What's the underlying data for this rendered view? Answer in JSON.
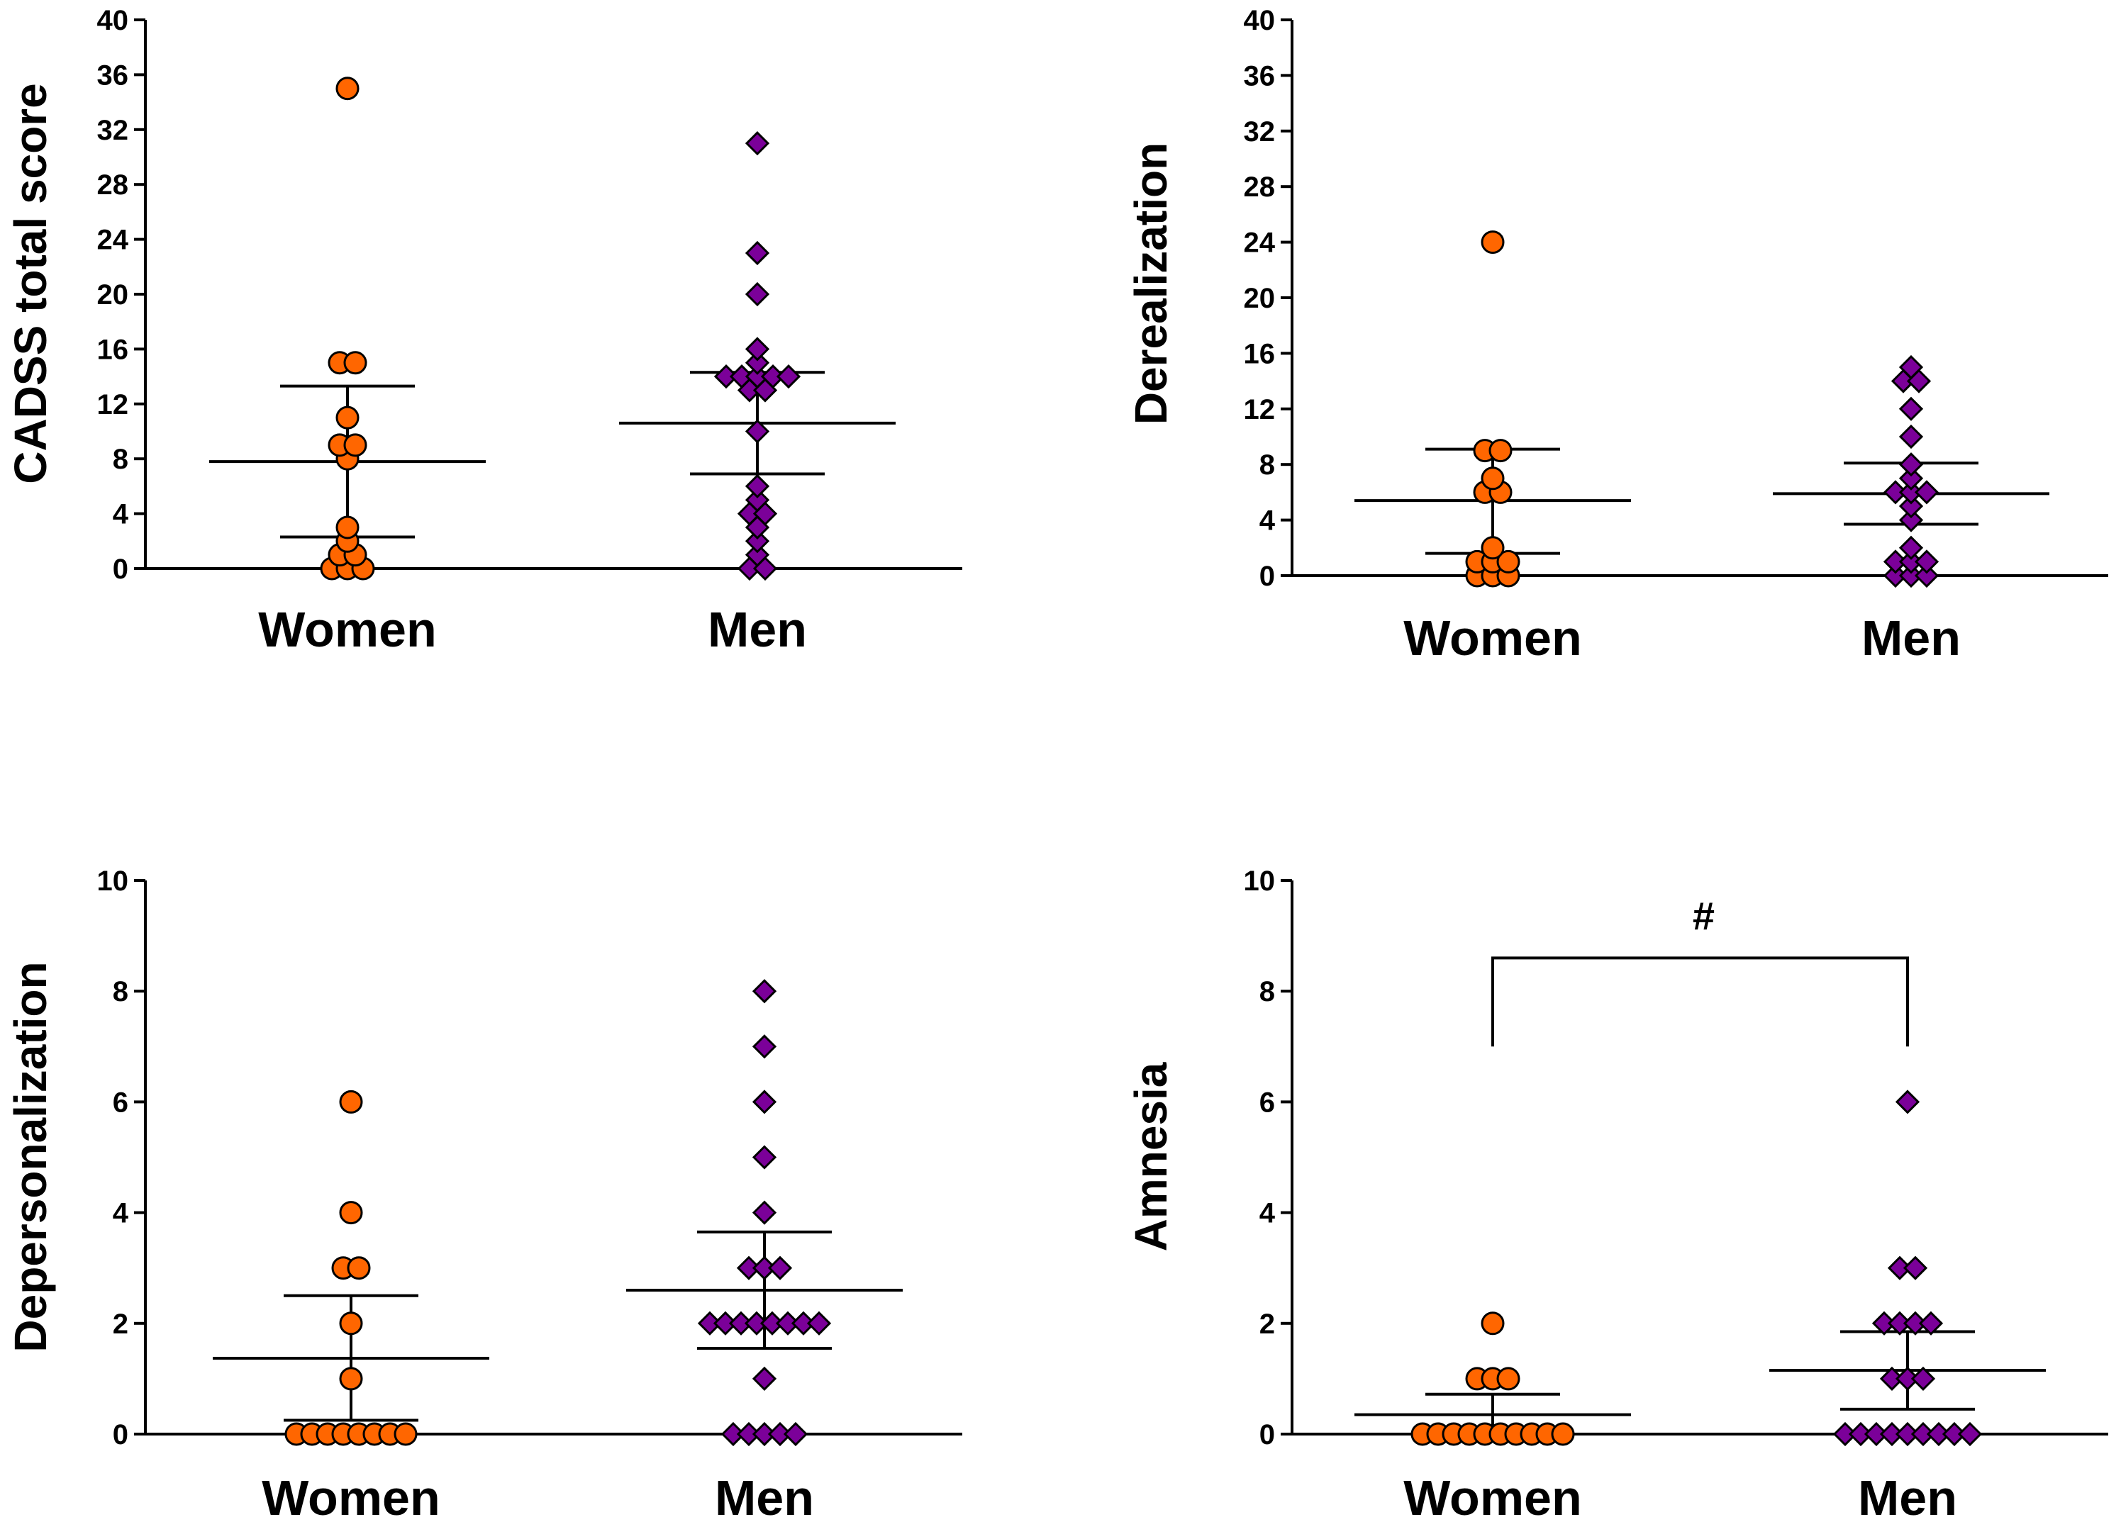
{
  "chart_data": [
    {
      "type": "scatter",
      "panel": "top-left",
      "ylabel": "CADSS total score",
      "ylim": [
        0,
        40
      ],
      "yticks": [
        0,
        4,
        8,
        12,
        16,
        20,
        24,
        28,
        32,
        36,
        40
      ],
      "categories": [
        "Women",
        "Men"
      ],
      "series": [
        {
          "name": "Women",
          "marker": "circle",
          "values": [
            35,
            15,
            15,
            11,
            9,
            9,
            8,
            3,
            2,
            1,
            1,
            0,
            0,
            0
          ],
          "mean": 7.8,
          "sem_low": 2.3,
          "sem_high": 13.3
        },
        {
          "name": "Men",
          "marker": "diamond",
          "values": [
            31,
            23,
            20,
            16,
            15,
            14,
            14,
            14,
            14,
            14,
            13,
            13,
            10,
            6,
            5,
            4,
            4,
            3,
            2,
            1,
            0,
            0
          ],
          "mean": 10.6,
          "sem_low": 6.9,
          "sem_high": 14.3
        }
      ]
    },
    {
      "type": "scatter",
      "panel": "top-right",
      "ylabel": "Derealization",
      "ylim": [
        0,
        40
      ],
      "yticks": [
        0,
        4,
        8,
        12,
        16,
        20,
        24,
        28,
        32,
        36,
        40
      ],
      "categories": [
        "Women",
        "Men"
      ],
      "series": [
        {
          "name": "Women",
          "marker": "circle",
          "values": [
            24,
            9,
            9,
            7,
            6,
            6,
            2,
            1,
            1,
            1,
            0,
            0,
            0
          ],
          "mean": 5.4,
          "sem_low": 1.6,
          "sem_high": 9.1
        },
        {
          "name": "Men",
          "marker": "diamond",
          "values": [
            15,
            14,
            14,
            12,
            10,
            8,
            7,
            6,
            6,
            6,
            5,
            4,
            2,
            1,
            1,
            1,
            0,
            0,
            0
          ],
          "mean": 5.9,
          "sem_low": 3.7,
          "sem_high": 8.1
        }
      ]
    },
    {
      "type": "scatter",
      "panel": "bottom-left",
      "ylabel": "Depersonalization",
      "ylim": [
        0,
        10
      ],
      "yticks": [
        0,
        2,
        4,
        6,
        8,
        10
      ],
      "categories": [
        "Women",
        "Men"
      ],
      "series": [
        {
          "name": "Women",
          "marker": "circle",
          "values": [
            6,
            4,
            3,
            3,
            2,
            1,
            0,
            0,
            0,
            0,
            0,
            0,
            0,
            0
          ],
          "mean": 1.37,
          "sem_low": 0.25,
          "sem_high": 2.5
        },
        {
          "name": "Men",
          "marker": "diamond",
          "values": [
            8,
            7,
            6,
            5,
            4,
            3,
            3,
            3,
            2,
            2,
            2,
            2,
            2,
            2,
            2,
            2,
            1,
            0,
            0,
            0,
            0,
            0
          ],
          "mean": 2.6,
          "sem_low": 1.55,
          "sem_high": 3.65
        }
      ]
    },
    {
      "type": "scatter",
      "panel": "bottom-right",
      "ylabel": "Amnesia",
      "ylim": [
        0,
        10
      ],
      "yticks": [
        0,
        2,
        4,
        6,
        8,
        10
      ],
      "categories": [
        "Women",
        "Men"
      ],
      "significance": "#",
      "bracket_y": 8.6,
      "bracket_drop_to": 7.0,
      "series": [
        {
          "name": "Women",
          "marker": "circle",
          "values": [
            2,
            1,
            1,
            1,
            0,
            0,
            0,
            0,
            0,
            0,
            0,
            0,
            0,
            0
          ],
          "mean": 0.35,
          "sem_low": 0.0,
          "sem_high": 0.72
        },
        {
          "name": "Men",
          "marker": "diamond",
          "values": [
            6,
            3,
            3,
            2,
            2,
            2,
            2,
            1,
            1,
            1,
            0,
            0,
            0,
            0,
            0,
            0,
            0,
            0,
            0
          ],
          "mean": 1.15,
          "sem_low": 0.45,
          "sem_high": 1.85
        }
      ]
    }
  ],
  "colors": {
    "women": "#ff6600",
    "men": "#7b0099",
    "outline": "#000000"
  }
}
